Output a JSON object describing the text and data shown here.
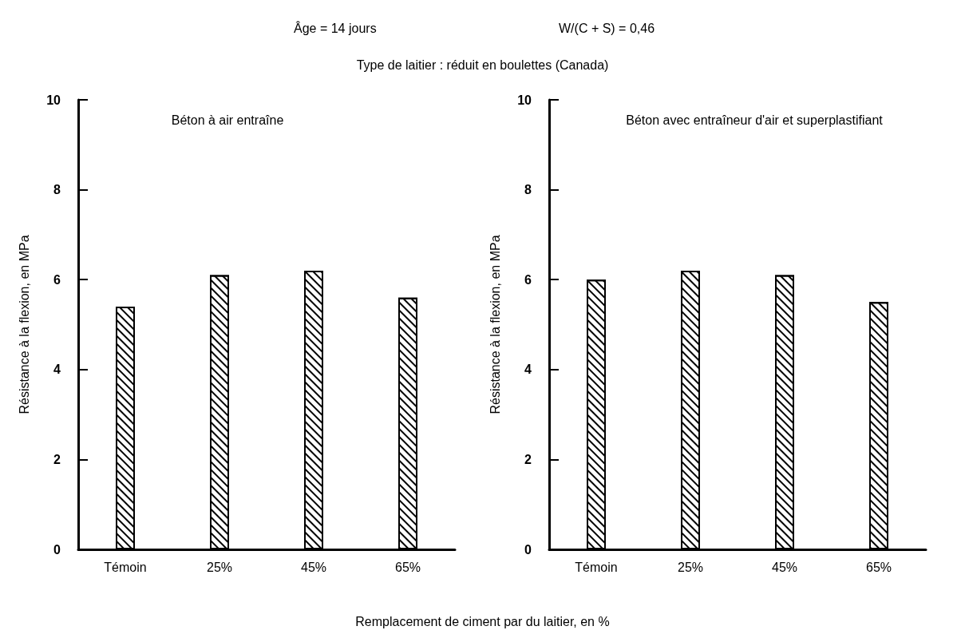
{
  "chart_data": [
    {
      "type": "bar",
      "title": "Béton à air entraîne",
      "annotations": [
        "Âge = 14 jours",
        "W/(C + S) = 0,46",
        "Type de laitier : réduit en boulettes (Canada)"
      ],
      "xlabel": "Remplacement de ciment par du laitier, en %",
      "ylabel": "Résistance à la flexion, en MPa",
      "categories": [
        "Témoin",
        "25%",
        "45%",
        "65%"
      ],
      "values": [
        5.4,
        6.1,
        6.2,
        5.6
      ],
      "color": "#000000",
      "ylim": [
        0,
        10
      ],
      "yticks": [
        0,
        2,
        4,
        6,
        8,
        10
      ],
      "grid": false
    },
    {
      "type": "bar",
      "title": "Béton avec entraîneur d'air et superplastifiant",
      "ylabel": "Résistance à la flexion, en MPa",
      "categories": [
        "Témoin",
        "25%",
        "45%",
        "65%"
      ],
      "values": [
        6.0,
        6.2,
        6.1,
        5.5
      ],
      "color": "#000000",
      "ylim": [
        0,
        10
      ],
      "yticks": [
        0,
        2,
        4,
        6,
        8,
        10
      ],
      "grid": false
    }
  ]
}
